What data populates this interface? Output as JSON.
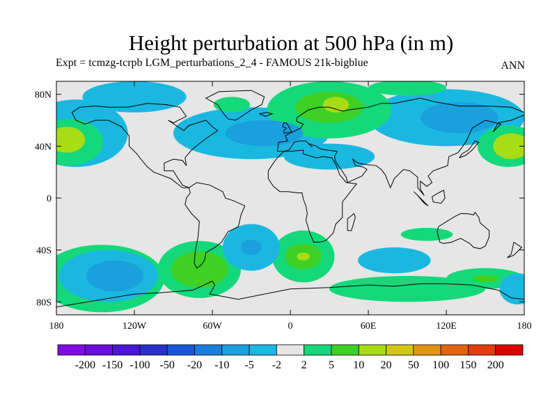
{
  "chart_data": {
    "type": "heatmap",
    "title": "Height perturbation at 500 hPa (in m)",
    "subtitle": "Expt = tcmzg-tcrpb    LGM_perturbations_2_4 - FAMOUS 21k-bigblue",
    "season": "ANN",
    "x_ticks": [
      {
        "value": -180,
        "label": "180"
      },
      {
        "value": -120,
        "label": "120W"
      },
      {
        "value": -60,
        "label": "60W"
      },
      {
        "value": 0,
        "label": "0"
      },
      {
        "value": 60,
        "label": "60E"
      },
      {
        "value": 120,
        "label": "120E"
      },
      {
        "value": 180,
        "label": "180"
      }
    ],
    "y_ticks": [
      {
        "value": 80,
        "label": "80N"
      },
      {
        "value": 40,
        "label": "40N"
      },
      {
        "value": 0,
        "label": "0"
      },
      {
        "value": -40,
        "label": "40S"
      },
      {
        "value": -80,
        "label": "80S"
      }
    ],
    "xlim": [
      -180,
      180
    ],
    "ylim": [
      -90,
      90
    ],
    "colorbar": {
      "labels": [
        "-200",
        "-150",
        "-100",
        "-50",
        "-20",
        "-10",
        "-5",
        "-2",
        "2",
        "5",
        "10",
        "20",
        "50",
        "100",
        "150",
        "200"
      ],
      "colors": [
        "#7f0ee6",
        "#6a0fdd",
        "#4a17d6",
        "#2d2ec9",
        "#1a55d8",
        "#1a7fd9",
        "#1aa0dd",
        "#1ab8e0",
        "#e6e6e6",
        "#14d87a",
        "#3fd025",
        "#a8dc14",
        "#d2c814",
        "#e09614",
        "#e0640e",
        "#e03c0e",
        "#dd0000"
      ]
    },
    "field": {
      "background_level": 8,
      "anomalies": [
        {
          "name": "north-pacific-positive",
          "lon": -172,
          "lat": 45,
          "rx": 14,
          "ry": 10,
          "level": 11
        },
        {
          "name": "north-pacific-positive-outer",
          "lon": -170,
          "lat": 43,
          "rx": 26,
          "ry": 18,
          "level": 9
        },
        {
          "name": "pacific-east-positive",
          "lon": 170,
          "lat": 40,
          "rx": 14,
          "ry": 10,
          "level": 11
        },
        {
          "name": "pacific-east-positive-outer",
          "lon": 168,
          "lat": 40,
          "rx": 24,
          "ry": 16,
          "level": 9
        },
        {
          "name": "north-pacific-negative-ring",
          "lon": -165,
          "lat": 50,
          "rx": 40,
          "ry": 26,
          "level": 7
        },
        {
          "name": "arctic-negative",
          "lon": -120,
          "lat": 78,
          "rx": 40,
          "ry": 12,
          "level": 7
        },
        {
          "name": "north-atlantic-negative-outer",
          "lon": -30,
          "lat": 50,
          "rx": 60,
          "ry": 20,
          "level": 7
        },
        {
          "name": "north-atlantic-negative-inner",
          "lon": -20,
          "lat": 50,
          "rx": 30,
          "ry": 10,
          "level": 6
        },
        {
          "name": "greenland-positive",
          "lon": -45,
          "lat": 72,
          "rx": 14,
          "ry": 6,
          "level": 9
        },
        {
          "name": "europe-positive-outer",
          "lon": 30,
          "lat": 68,
          "rx": 48,
          "ry": 22,
          "level": 9
        },
        {
          "name": "europe-positive-inner",
          "lon": 30,
          "lat": 70,
          "rx": 26,
          "ry": 12,
          "level": 10
        },
        {
          "name": "europe-positive-core",
          "lon": 35,
          "lat": 72,
          "rx": 10,
          "ry": 6,
          "level": 11
        },
        {
          "name": "mediterranean-negative",
          "lon": 30,
          "lat": 32,
          "rx": 35,
          "ry": 10,
          "level": 7
        },
        {
          "name": "siberia-negative-outer",
          "lon": 120,
          "lat": 62,
          "rx": 60,
          "ry": 22,
          "level": 7
        },
        {
          "name": "siberia-negative-inner",
          "lon": 130,
          "lat": 62,
          "rx": 30,
          "ry": 12,
          "level": 6
        },
        {
          "name": "arctic-positive",
          "lon": 90,
          "lat": 85,
          "rx": 30,
          "ry": 6,
          "level": 9
        },
        {
          "name": "south-pacific-negative-outer",
          "lon": -140,
          "lat": -60,
          "rx": 38,
          "ry": 20,
          "level": 7
        },
        {
          "name": "south-pacific-negative-inner",
          "lon": -135,
          "lat": -60,
          "rx": 22,
          "ry": 12,
          "level": 6
        },
        {
          "name": "south-pacific-positive-ring",
          "lon": -145,
          "lat": -62,
          "rx": 48,
          "ry": 26,
          "level": 9
        },
        {
          "name": "south-america-positive-outer",
          "lon": -70,
          "lat": -55,
          "rx": 32,
          "ry": 22,
          "level": 9
        },
        {
          "name": "south-america-positive-inner",
          "lon": -70,
          "lat": -55,
          "rx": 22,
          "ry": 14,
          "level": 10
        },
        {
          "name": "south-atlantic-negative-outer",
          "lon": -30,
          "lat": -38,
          "rx": 22,
          "ry": 18,
          "level": 7
        },
        {
          "name": "south-atlantic-negative-inner",
          "lon": -30,
          "lat": -38,
          "rx": 8,
          "ry": 6,
          "level": 6
        },
        {
          "name": "south-africa-positive-outer",
          "lon": 10,
          "lat": -45,
          "rx": 24,
          "ry": 20,
          "level": 9
        },
        {
          "name": "south-africa-positive-mid",
          "lon": 10,
          "lat": -45,
          "rx": 14,
          "ry": 10,
          "level": 10
        },
        {
          "name": "south-africa-positive-core",
          "lon": 10,
          "lat": -45,
          "rx": 5,
          "ry": 3,
          "level": 11
        },
        {
          "name": "indian-ocean-positive",
          "lon": 105,
          "lat": -28,
          "rx": 20,
          "ry": 5,
          "level": 9
        },
        {
          "name": "indian-ocean-negative",
          "lon": 80,
          "lat": -48,
          "rx": 28,
          "ry": 10,
          "level": 7
        },
        {
          "name": "southern-ocean-positive",
          "lon": 90,
          "lat": -70,
          "rx": 60,
          "ry": 10,
          "level": 9
        },
        {
          "name": "southern-ocean-positive-west",
          "lon": 150,
          "lat": -62,
          "rx": 30,
          "ry": 8,
          "level": 9
        },
        {
          "name": "southern-ocean-positive-inner",
          "lon": 150,
          "lat": -62,
          "rx": 10,
          "ry": 3,
          "level": 10
        },
        {
          "name": "south-pacific-negative-east",
          "lon": 175,
          "lat": -70,
          "rx": 14,
          "ry": 12,
          "level": 7
        }
      ]
    }
  }
}
